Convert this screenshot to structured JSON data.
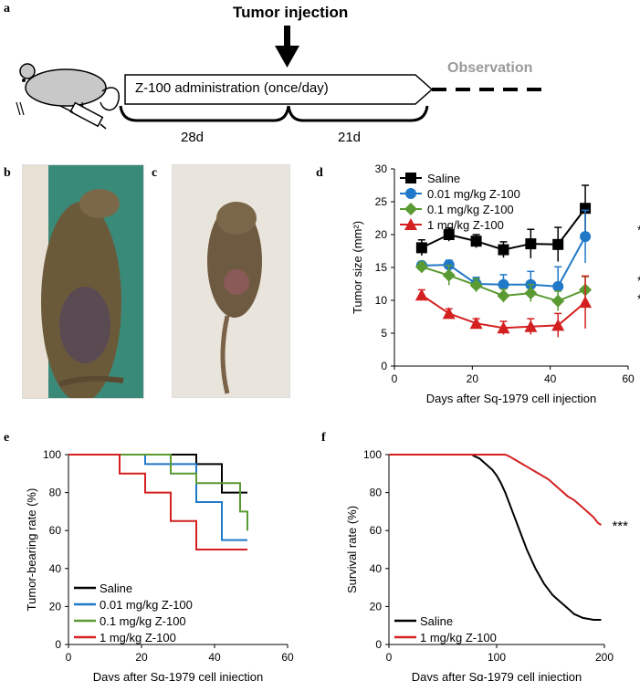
{
  "panels": {
    "a": {
      "letter": "a",
      "tumor_injection": "Tumor injection",
      "observation": "Observation",
      "admin_label": "Z-100 administration (once/day)",
      "period1": "28d",
      "period2": "21d"
    },
    "b": {
      "letter": "b"
    },
    "c": {
      "letter": "c"
    },
    "d": {
      "letter": "d"
    },
    "e": {
      "letter": "e"
    },
    "f": {
      "letter": "f"
    }
  },
  "chart_data": [
    {
      "panel": "d",
      "type": "line",
      "xlabel": "Days after Sq-1979 cell injection",
      "ylabel": "Tumor size (mm²)",
      "xlim": [
        0,
        60
      ],
      "ylim": [
        0,
        30
      ],
      "xticks": [
        0,
        20,
        40,
        60
      ],
      "yticks": [
        0,
        5,
        10,
        15,
        20,
        25,
        30
      ],
      "legend": "top-left",
      "x": [
        7,
        14,
        21,
        28,
        35,
        42,
        49
      ],
      "series": [
        {
          "name": "Saline",
          "color": "#000000",
          "marker": "square",
          "values": [
            18,
            20,
            19,
            17.7,
            18.6,
            18.5,
            24
          ],
          "errors": [
            1.2,
            1.0,
            1.0,
            1.2,
            2.2,
            2.6,
            3.5
          ],
          "sig": "*"
        },
        {
          "name": "0.01 mg/kg Z-100",
          "color": "#1f78c8",
          "marker": "circle",
          "values": [
            15.3,
            15.4,
            12.5,
            12.4,
            12.4,
            12.1,
            19.7
          ],
          "errors": [
            0.6,
            0.7,
            1.0,
            1.5,
            2.0,
            3.0,
            4.0
          ],
          "sig": "**"
        },
        {
          "name": "0.1 mg/kg Z-100",
          "color": "#5a9a32",
          "marker": "diamond",
          "values": [
            15.1,
            13.8,
            12.3,
            10.7,
            11.1,
            9.9,
            11.6
          ],
          "errors": [
            0.7,
            1.5,
            1.0,
            1.0,
            1.3,
            1.5,
            2.0
          ],
          "sig": ""
        },
        {
          "name": "1 mg/kg Z-100",
          "color": "#d42020",
          "marker": "triangle",
          "values": [
            10.8,
            8,
            6.5,
            5.8,
            6,
            6.2,
            9.7
          ],
          "errors": [
            0.8,
            0.7,
            0.7,
            1.0,
            1.2,
            1.8,
            4.0
          ],
          "sig": "***"
        }
      ]
    },
    {
      "panel": "e",
      "type": "line",
      "step": true,
      "xlabel": "Days after Sq-1979 cell injection",
      "ylabel": "Tumor-bearing rate (%)",
      "xlim": [
        0,
        60
      ],
      "ylim": [
        0,
        100
      ],
      "xticks": [
        0,
        20,
        40,
        60
      ],
      "yticks": [
        0,
        20,
        40,
        60,
        80,
        100
      ],
      "legend": "bottom-left",
      "series": [
        {
          "name": "Saline",
          "color": "#000000",
          "points": [
            [
              0,
              100
            ],
            [
              35,
              100
            ],
            [
              35,
              95
            ],
            [
              42,
              95
            ],
            [
              42,
              80
            ],
            [
              49,
              80
            ]
          ]
        },
        {
          "name": "0.01 mg/kg Z-100",
          "color": "#1f78c8",
          "points": [
            [
              0,
              100
            ],
            [
              21,
              100
            ],
            [
              21,
              95
            ],
            [
              35,
              95
            ],
            [
              35,
              75
            ],
            [
              42,
              75
            ],
            [
              42,
              55
            ],
            [
              49,
              55
            ]
          ]
        },
        {
          "name": "0.1 mg/kg Z-100",
          "color": "#5a9a32",
          "points": [
            [
              0,
              100
            ],
            [
              28,
              100
            ],
            [
              28,
              90
            ],
            [
              35,
              90
            ],
            [
              35,
              85
            ],
            [
              47,
              85
            ],
            [
              47,
              70
            ],
            [
              49,
              70
            ],
            [
              49,
              60
            ]
          ]
        },
        {
          "name": "1 mg/kg Z-100",
          "color": "#d42020",
          "points": [
            [
              0,
              100
            ],
            [
              14,
              100
            ],
            [
              14,
              90
            ],
            [
              21,
              90
            ],
            [
              21,
              80
            ],
            [
              28,
              80
            ],
            [
              28,
              65
            ],
            [
              35,
              65
            ],
            [
              35,
              50
            ],
            [
              49,
              50
            ]
          ]
        }
      ]
    },
    {
      "panel": "f",
      "type": "line",
      "step": true,
      "xlabel": "Days after Sq-1979 cell injection",
      "ylabel": "Survival rate (%)",
      "xlim": [
        0,
        200
      ],
      "ylim": [
        0,
        100
      ],
      "xticks": [
        0,
        100,
        200
      ],
      "yticks": [
        0,
        20,
        40,
        60,
        80,
        100
      ],
      "legend": "bottom-left",
      "series": [
        {
          "name": "Saline",
          "color": "#000000",
          "points": [
            [
              0,
              100
            ],
            [
              77,
              100
            ],
            [
              80,
              99
            ],
            [
              84,
              98
            ],
            [
              88,
              96
            ],
            [
              92,
              94
            ],
            [
              96,
              92
            ],
            [
              100,
              89
            ],
            [
              104,
              85
            ],
            [
              108,
              80
            ],
            [
              112,
              74
            ],
            [
              116,
              68
            ],
            [
              120,
              62
            ],
            [
              124,
              56
            ],
            [
              128,
              50
            ],
            [
              132,
              45
            ],
            [
              136,
              40
            ],
            [
              140,
              36
            ],
            [
              144,
              32
            ],
            [
              148,
              29
            ],
            [
              152,
              26
            ],
            [
              156,
              24
            ],
            [
              160,
              22
            ],
            [
              164,
              20
            ],
            [
              168,
              18
            ],
            [
              172,
              16
            ],
            [
              176,
              15
            ],
            [
              180,
              14
            ],
            [
              190,
              13
            ],
            [
              197,
              13
            ]
          ]
        },
        {
          "name": "1 mg/kg Z-100",
          "color": "#d42020",
          "points": [
            [
              0,
              100
            ],
            [
              108,
              100
            ],
            [
              112,
              99
            ],
            [
              118,
              97
            ],
            [
              124,
              95
            ],
            [
              130,
              93
            ],
            [
              136,
              91
            ],
            [
              142,
              89
            ],
            [
              148,
              87
            ],
            [
              154,
              84
            ],
            [
              160,
              81
            ],
            [
              166,
              78
            ],
            [
              172,
              76
            ],
            [
              178,
              73
            ],
            [
              184,
              70
            ],
            [
              190,
              67
            ],
            [
              194,
              64
            ],
            [
              197,
              63
            ]
          ],
          "sig": "***"
        }
      ]
    }
  ]
}
